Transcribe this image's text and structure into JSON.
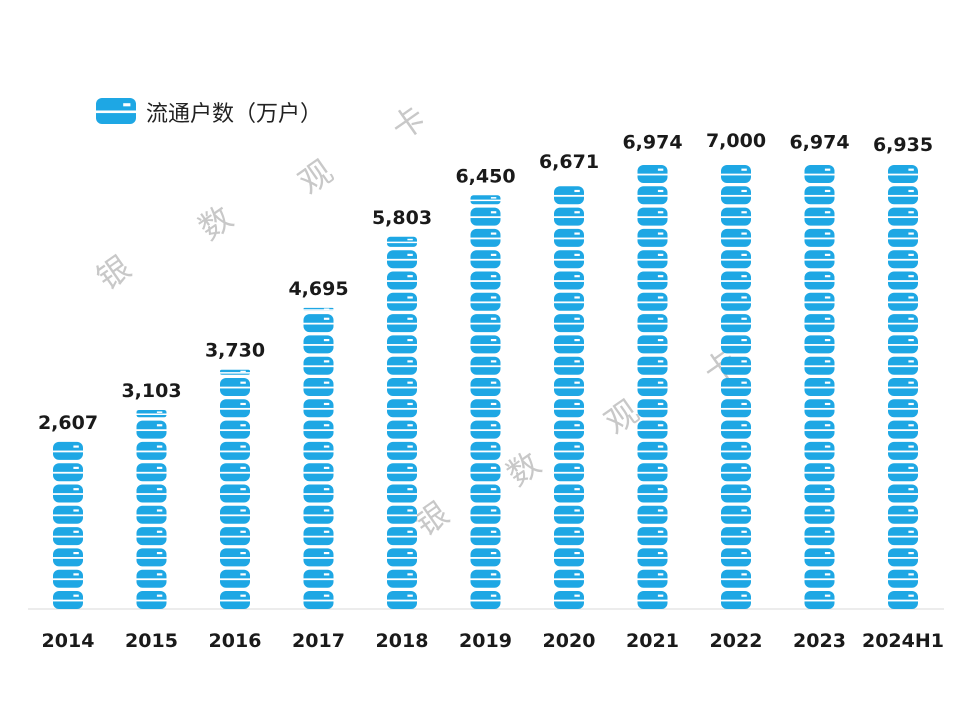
{
  "chart_data": {
    "type": "bar",
    "categories": [
      "2014",
      "2015",
      "2016",
      "2017",
      "2018",
      "2019",
      "2020",
      "2021",
      "2022",
      "2023",
      "2024H1"
    ],
    "series": [
      {
        "name": "流通户数（万户）",
        "values": [
          2607,
          3103,
          3730,
          4695,
          5803,
          6450,
          6671,
          6974,
          7000,
          6974,
          6935
        ],
        "labels": [
          "2,607",
          "3,103",
          "3,730",
          "4,695",
          "5,803",
          "6,450",
          "6,671",
          "6,974",
          "7,000",
          "6,974",
          "6,935"
        ]
      }
    ],
    "ylim": [
      0,
      7000
    ],
    "grid": false,
    "legend": "top-left",
    "bar_color": "#1ea7e4",
    "bar_style": "stacked-card-icons"
  },
  "watermark": {
    "chars": [
      "银",
      "数",
      "观",
      "卡"
    ]
  }
}
